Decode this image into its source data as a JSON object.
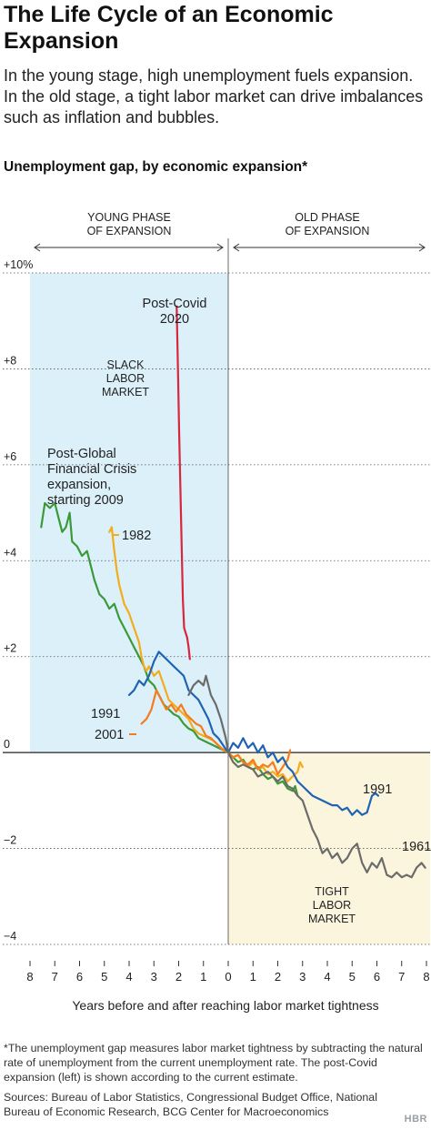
{
  "header": {
    "title": "The Life Cycle of an Economic Expansion",
    "subtitle": "In the young stage, high unemployment fuels expansion. In the old stage, a tight labor market can drive imbalances such as inflation and bubbles."
  },
  "footer": {
    "footnote": "*The unemployment gap measures labor market tightness by subtracting the natural rate of unemployment from the current unemployment rate. The post-Covid expansion (left) is shown according to the current estimate.",
    "sources": "Sources: Bureau of Labor Statistics, Congressional Budget Office, National Bureau of Economic Research, BCG Center for Macroeconomics",
    "logo": "HBR"
  },
  "colors": {
    "young_bg": "#dcf0f9",
    "old_bg": "#fbf5dd",
    "covid": "#d7263d",
    "gfc": "#3a9a3a",
    "s1982": "#f2ad1c",
    "s1991": "#1f63b4",
    "s2001": "#f47c20",
    "s1961": "#6b6b6b"
  },
  "chart_data": {
    "type": "line",
    "title": "Unemployment gap, by economic expansion*",
    "xlabel": "Years before and after reaching labor market tightness",
    "ylabel": "",
    "xlim": [
      -8,
      8
    ],
    "ylim": [
      -4,
      10
    ],
    "x_ticks": [
      -8,
      -7,
      -6,
      -5,
      -4,
      -3,
      -2,
      -1,
      0,
      1,
      2,
      3,
      4,
      5,
      6,
      7,
      8
    ],
    "x_tick_labels": [
      "8",
      "7",
      "6",
      "5",
      "4",
      "3",
      "2",
      "1",
      "0",
      "1",
      "2",
      "3",
      "4",
      "5",
      "6",
      "7",
      "8"
    ],
    "y_ticks": [
      10,
      8,
      6,
      4,
      2,
      0,
      -2,
      -4
    ],
    "y_tick_labels": [
      "+10%",
      "+8",
      "+6",
      "+4",
      "+2",
      "0",
      "−2",
      "−4"
    ],
    "phases": {
      "young_label": [
        "YOUNG PHASE",
        "OF EXPANSION"
      ],
      "old_label": [
        "OLD PHASE",
        "OF EXPANSION"
      ]
    },
    "region_labels": {
      "slack": [
        "SLACK",
        "LABOR",
        "MARKET"
      ],
      "tight": [
        "TIGHT",
        "LABOR",
        "MARKET"
      ]
    },
    "series": [
      {
        "name": "Post-Covid 2020",
        "label_lines": [
          "Post-Covid",
          "2020"
        ],
        "color_key": "covid",
        "points": [
          [
            -2.08,
            9.3
          ],
          [
            -2.03,
            8.0
          ],
          [
            -1.98,
            6.7
          ],
          [
            -1.93,
            5.5
          ],
          [
            -1.88,
            4.3
          ],
          [
            -1.83,
            3.2
          ],
          [
            -1.78,
            2.6
          ],
          [
            -1.72,
            2.5
          ],
          [
            -1.66,
            2.4
          ],
          [
            -1.6,
            2.2
          ],
          [
            -1.55,
            1.95
          ]
        ]
      },
      {
        "name": "Post-Global Financial Crisis expansion, starting 2009",
        "label_lines": [
          "Post-Global",
          "Financial Crisis",
          "expansion,",
          "starting 2009"
        ],
        "color_key": "gfc",
        "points": [
          [
            -7.55,
            4.7
          ],
          [
            -7.4,
            5.2
          ],
          [
            -7.2,
            5.1
          ],
          [
            -7.0,
            5.2
          ],
          [
            -6.85,
            4.9
          ],
          [
            -6.7,
            4.6
          ],
          [
            -6.55,
            4.7
          ],
          [
            -6.4,
            5.0
          ],
          [
            -6.3,
            4.4
          ],
          [
            -6.1,
            4.3
          ],
          [
            -5.9,
            4.1
          ],
          [
            -5.7,
            4.2
          ],
          [
            -5.55,
            3.9
          ],
          [
            -5.4,
            3.6
          ],
          [
            -5.2,
            3.3
          ],
          [
            -5.0,
            3.2
          ],
          [
            -4.8,
            3.0
          ],
          [
            -4.6,
            3.1
          ],
          [
            -4.4,
            2.8
          ],
          [
            -4.2,
            2.6
          ],
          [
            -4.0,
            2.4
          ],
          [
            -3.8,
            2.2
          ],
          [
            -3.6,
            2.0
          ],
          [
            -3.4,
            1.8
          ],
          [
            -3.2,
            1.5
          ],
          [
            -3.0,
            1.4
          ],
          [
            -2.8,
            1.2
          ],
          [
            -2.6,
            1.0
          ],
          [
            -2.4,
            0.9
          ],
          [
            -2.2,
            0.8
          ],
          [
            -2.0,
            0.75
          ],
          [
            -1.8,
            0.6
          ],
          [
            -1.6,
            0.5
          ],
          [
            -1.4,
            0.45
          ],
          [
            -1.2,
            0.3
          ],
          [
            -1.0,
            0.25
          ],
          [
            -0.8,
            0.2
          ],
          [
            -0.6,
            0.15
          ],
          [
            -0.4,
            0.1
          ],
          [
            -0.2,
            0.05
          ],
          [
            0.0,
            0.0
          ],
          [
            0.2,
            -0.1
          ],
          [
            0.4,
            -0.2
          ],
          [
            0.6,
            -0.15
          ],
          [
            0.8,
            -0.3
          ],
          [
            1.0,
            -0.35
          ],
          [
            1.2,
            -0.3
          ],
          [
            1.4,
            -0.45
          ],
          [
            1.6,
            -0.55
          ],
          [
            1.8,
            -0.5
          ],
          [
            2.0,
            -0.65
          ],
          [
            2.2,
            -0.6
          ],
          [
            2.4,
            -0.75
          ],
          [
            2.6,
            -0.8
          ],
          [
            2.7,
            -0.7
          ],
          [
            2.8,
            -0.9
          ]
        ]
      },
      {
        "name": "1982",
        "label_lines": [
          "1982"
        ],
        "color_key": "s1982",
        "points": [
          [
            -4.8,
            4.6
          ],
          [
            -4.7,
            4.7
          ],
          [
            -4.6,
            4.2
          ],
          [
            -4.5,
            3.8
          ],
          [
            -4.4,
            3.5
          ],
          [
            -4.2,
            3.1
          ],
          [
            -4.0,
            2.9
          ],
          [
            -3.8,
            2.6
          ],
          [
            -3.6,
            2.3
          ],
          [
            -3.5,
            2.0
          ],
          [
            -3.4,
            1.8
          ],
          [
            -3.3,
            1.7
          ],
          [
            -3.2,
            1.8
          ],
          [
            -3.0,
            1.6
          ],
          [
            -2.8,
            1.7
          ],
          [
            -2.6,
            1.4
          ],
          [
            -2.4,
            1.1
          ],
          [
            -2.2,
            1.0
          ],
          [
            -2.0,
            0.9
          ],
          [
            -1.8,
            0.8
          ],
          [
            -1.6,
            0.7
          ],
          [
            -1.4,
            0.5
          ],
          [
            -1.2,
            0.4
          ],
          [
            -1.0,
            0.35
          ],
          [
            -0.8,
            0.3
          ],
          [
            -0.6,
            0.25
          ],
          [
            -0.4,
            0.15
          ],
          [
            -0.2,
            0.05
          ],
          [
            0.0,
            0.0
          ],
          [
            0.2,
            -0.1
          ],
          [
            0.4,
            -0.05
          ],
          [
            0.6,
            -0.2
          ],
          [
            0.8,
            -0.3
          ],
          [
            1.0,
            -0.2
          ],
          [
            1.2,
            -0.35
          ],
          [
            1.4,
            -0.3
          ],
          [
            1.6,
            -0.45
          ],
          [
            1.8,
            -0.4
          ],
          [
            2.0,
            -0.5
          ],
          [
            2.2,
            -0.45
          ],
          [
            2.4,
            -0.6
          ],
          [
            2.6,
            -0.5
          ],
          [
            2.8,
            -0.4
          ],
          [
            2.9,
            -0.2
          ],
          [
            3.0,
            -0.3
          ]
        ]
      },
      {
        "name": "1991",
        "label_lines": [
          "1991"
        ],
        "color_key": "s1991",
        "points": [
          [
            -4.0,
            1.2
          ],
          [
            -3.8,
            1.3
          ],
          [
            -3.6,
            1.5
          ],
          [
            -3.4,
            1.4
          ],
          [
            -3.2,
            1.6
          ],
          [
            -3.0,
            1.9
          ],
          [
            -2.8,
            2.1
          ],
          [
            -2.6,
            2.0
          ],
          [
            -2.4,
            1.9
          ],
          [
            -2.2,
            1.8
          ],
          [
            -2.0,
            1.7
          ],
          [
            -1.8,
            1.6
          ],
          [
            -1.6,
            1.3
          ],
          [
            -1.4,
            1.2
          ],
          [
            -1.2,
            1.1
          ],
          [
            -1.0,
            0.9
          ],
          [
            -0.8,
            0.7
          ],
          [
            -0.6,
            0.4
          ],
          [
            -0.4,
            0.3
          ],
          [
            -0.2,
            0.15
          ],
          [
            0.0,
            0.0
          ],
          [
            0.2,
            0.2
          ],
          [
            0.4,
            0.1
          ],
          [
            0.6,
            0.3
          ],
          [
            0.8,
            0.1
          ],
          [
            1.0,
            0.2
          ],
          [
            1.2,
            0.0
          ],
          [
            1.4,
            0.15
          ],
          [
            1.6,
            -0.1
          ],
          [
            1.8,
            0.0
          ],
          [
            2.0,
            -0.2
          ],
          [
            2.2,
            -0.1
          ],
          [
            2.4,
            -0.3
          ],
          [
            2.6,
            -0.4
          ],
          [
            2.8,
            -0.6
          ],
          [
            3.0,
            -0.7
          ],
          [
            3.2,
            -0.8
          ],
          [
            3.4,
            -0.9
          ],
          [
            3.6,
            -0.95
          ],
          [
            3.8,
            -1.0
          ],
          [
            4.0,
            -1.05
          ],
          [
            4.2,
            -1.1
          ],
          [
            4.4,
            -1.1
          ],
          [
            4.6,
            -1.2
          ],
          [
            4.8,
            -1.15
          ],
          [
            5.0,
            -1.3
          ],
          [
            5.2,
            -1.2
          ],
          [
            5.4,
            -1.3
          ],
          [
            5.6,
            -1.25
          ],
          [
            5.8,
            -0.9
          ],
          [
            5.95,
            -0.85
          ],
          [
            6.05,
            -0.9
          ]
        ]
      },
      {
        "name": "2001",
        "label_lines": [
          "2001"
        ],
        "color_key": "s2001",
        "points": [
          [
            -3.5,
            0.6
          ],
          [
            -3.3,
            0.7
          ],
          [
            -3.1,
            0.9
          ],
          [
            -2.9,
            1.3
          ],
          [
            -2.7,
            1.1
          ],
          [
            -2.5,
            0.9
          ],
          [
            -2.3,
            1.0
          ],
          [
            -2.1,
            0.85
          ],
          [
            -1.9,
            1.0
          ],
          [
            -1.7,
            0.8
          ],
          [
            -1.5,
            0.7
          ],
          [
            -1.3,
            0.6
          ],
          [
            -1.1,
            0.55
          ],
          [
            -0.9,
            0.35
          ],
          [
            -0.7,
            0.3
          ],
          [
            -0.5,
            0.2
          ],
          [
            -0.3,
            0.1
          ],
          [
            0.0,
            0.0
          ],
          [
            0.2,
            -0.1
          ],
          [
            0.4,
            -0.05
          ],
          [
            0.6,
            -0.2
          ],
          [
            0.8,
            -0.25
          ],
          [
            1.0,
            -0.15
          ],
          [
            1.2,
            -0.35
          ],
          [
            1.4,
            -0.25
          ],
          [
            1.6,
            -0.3
          ],
          [
            1.8,
            -0.2
          ],
          [
            2.0,
            -0.45
          ],
          [
            2.2,
            -0.3
          ],
          [
            2.4,
            -0.15
          ],
          [
            2.5,
            0.05
          ]
        ]
      },
      {
        "name": "1961",
        "label_lines": [
          "1961"
        ],
        "color_key": "s1961",
        "points": [
          [
            -1.6,
            1.2
          ],
          [
            -1.4,
            1.4
          ],
          [
            -1.2,
            1.5
          ],
          [
            -1.0,
            1.4
          ],
          [
            -0.9,
            1.6
          ],
          [
            -0.7,
            1.2
          ],
          [
            -0.5,
            1.0
          ],
          [
            -0.3,
            0.7
          ],
          [
            -0.1,
            0.3
          ],
          [
            0.0,
            0.0
          ],
          [
            0.2,
            -0.2
          ],
          [
            0.4,
            -0.3
          ],
          [
            0.6,
            -0.25
          ],
          [
            0.8,
            -0.3
          ],
          [
            1.0,
            -0.35
          ],
          [
            1.2,
            -0.5
          ],
          [
            1.4,
            -0.45
          ],
          [
            1.6,
            -0.4
          ],
          [
            1.8,
            -0.5
          ],
          [
            2.0,
            -0.6
          ],
          [
            2.2,
            -0.5
          ],
          [
            2.4,
            -0.7
          ],
          [
            2.6,
            -0.75
          ],
          [
            2.8,
            -0.9
          ],
          [
            3.0,
            -1.0
          ],
          [
            3.2,
            -1.3
          ],
          [
            3.4,
            -1.6
          ],
          [
            3.6,
            -1.8
          ],
          [
            3.8,
            -2.1
          ],
          [
            4.0,
            -2.0
          ],
          [
            4.2,
            -2.2
          ],
          [
            4.4,
            -2.1
          ],
          [
            4.6,
            -2.3
          ],
          [
            4.8,
            -2.2
          ],
          [
            5.0,
            -2.0
          ],
          [
            5.2,
            -1.9
          ],
          [
            5.4,
            -2.3
          ],
          [
            5.6,
            -2.5
          ],
          [
            5.8,
            -2.3
          ],
          [
            6.0,
            -2.4
          ],
          [
            6.2,
            -2.2
          ],
          [
            6.4,
            -2.55
          ],
          [
            6.6,
            -2.6
          ],
          [
            6.8,
            -2.5
          ],
          [
            7.0,
            -2.6
          ],
          [
            7.2,
            -2.55
          ],
          [
            7.4,
            -2.6
          ],
          [
            7.6,
            -2.4
          ],
          [
            7.8,
            -2.3
          ],
          [
            7.95,
            -2.4
          ]
        ]
      }
    ]
  }
}
